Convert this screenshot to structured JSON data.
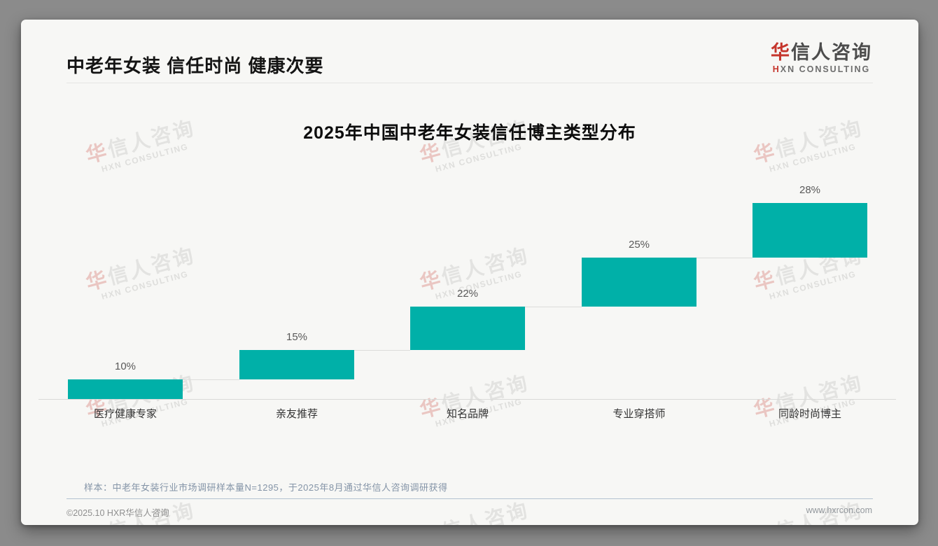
{
  "header": {
    "title": "中老年女装 信任时尚 健康次要"
  },
  "logo": {
    "zh_first": "华",
    "zh_rest": "信人咨询",
    "en_first": "H",
    "en_rest": "XN CONSULTING"
  },
  "chart_data": {
    "type": "bar",
    "variant": "waterfall_step",
    "title": "2025年中国中老年女装信任博主类型分布",
    "categories": [
      "医疗健康专家",
      "亲友推荐",
      "知名品牌",
      "专业穿搭师",
      "同龄时尚博主"
    ],
    "values": [
      10,
      15,
      22,
      25,
      28
    ],
    "data_labels": [
      "10%",
      "15%",
      "22%",
      "25%",
      "28%"
    ],
    "cumulative_baselines": [
      0,
      10,
      25,
      47,
      72
    ],
    "unit": "%",
    "ylim": [
      0,
      100
    ],
    "bar_color": "#00B0A8",
    "connector_color": "#dcdcda",
    "grid": false,
    "legend": false
  },
  "footnote": {
    "text": "样本：中老年女装行业市场调研样本量N=1295，于2025年8月通过华信人咨询调研获得"
  },
  "footer": {
    "left": "©2025.10 HXR华信人咨询",
    "right": "www.hxrcon.com"
  },
  "watermark": {
    "line1_first": "华",
    "line1_rest": "信人咨询",
    "line2": "HXN CONSULTING"
  },
  "colors": {
    "bar": "#00B0A8",
    "accent_red": "#C5352C",
    "note_text": "#8494A7"
  }
}
